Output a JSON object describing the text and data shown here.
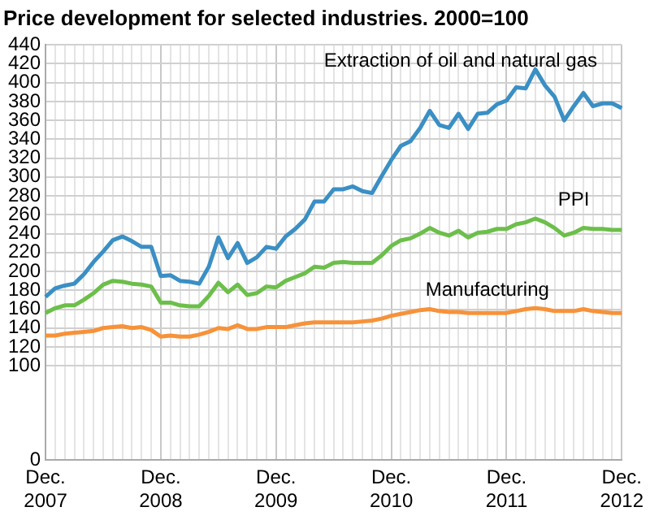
{
  "chart_data": {
    "type": "line",
    "title": "Price development for selected industries. 2000=100",
    "categories": [
      "Dec. 2007",
      null,
      null,
      null,
      null,
      null,
      null,
      null,
      null,
      null,
      null,
      null,
      "Dec. 2008",
      null,
      null,
      null,
      null,
      null,
      null,
      null,
      null,
      null,
      null,
      null,
      "Dec. 2009",
      null,
      null,
      null,
      null,
      null,
      null,
      null,
      null,
      null,
      null,
      null,
      "Dec. 2010",
      null,
      null,
      null,
      null,
      null,
      null,
      null,
      null,
      null,
      null,
      null,
      "Dec. 2011",
      null,
      null,
      null,
      null,
      null,
      null,
      null,
      null,
      null,
      null,
      null,
      "Dec. 2012"
    ],
    "series": [
      {
        "name": "Extraction of oil and natural gas",
        "color": "#3a8fc4",
        "values": [
          173,
          182,
          185,
          187,
          197,
          210,
          221,
          233,
          237,
          232,
          226,
          226,
          195,
          196,
          190,
          189,
          187,
          205,
          236,
          214,
          230,
          209,
          215,
          226,
          224,
          237,
          245,
          255,
          274,
          274,
          287,
          287,
          290,
          285,
          283,
          301,
          318,
          333,
          338,
          352,
          370,
          355,
          352,
          367,
          351,
          367,
          368,
          377,
          381,
          395,
          394,
          414,
          397,
          385,
          360,
          375,
          389,
          375,
          378,
          378,
          373
        ]
      },
      {
        "name": "PPI",
        "color": "#6cbf4a",
        "values": [
          156,
          161,
          164,
          164,
          170,
          177,
          186,
          190,
          189,
          187,
          186,
          184,
          167,
          167,
          164,
          163,
          163,
          174,
          188,
          178,
          186,
          175,
          177,
          184,
          183,
          190,
          194,
          198,
          205,
          204,
          209,
          210,
          209,
          209,
          209,
          217,
          227,
          233,
          235,
          240,
          246,
          241,
          238,
          243,
          236,
          241,
          242,
          245,
          245,
          250,
          252,
          256,
          252,
          246,
          238,
          241,
          246,
          245,
          245,
          244,
          244
        ]
      },
      {
        "name": "Manufacturing",
        "color": "#f7923a",
        "values": [
          132,
          132,
          134,
          135,
          136,
          137,
          140,
          141,
          142,
          140,
          141,
          138,
          131,
          132,
          131,
          131,
          133,
          136,
          140,
          139,
          143,
          139,
          139,
          141,
          141,
          141,
          143,
          145,
          146,
          146,
          146,
          146,
          146,
          147,
          148,
          150,
          153,
          155,
          157,
          159,
          160,
          158,
          157,
          157,
          156,
          156,
          156,
          156,
          156,
          158,
          160,
          161,
          160,
          158,
          158,
          158,
          160,
          158,
          157,
          156,
          156
        ]
      }
    ],
    "ylim": [
      0,
      440
    ],
    "yticks": [
      0,
      100,
      120,
      140,
      160,
      180,
      200,
      220,
      240,
      260,
      280,
      300,
      320,
      340,
      360,
      380,
      400,
      420,
      440
    ],
    "grid": true,
    "legend": false,
    "marker": "none",
    "line_style": "solid"
  }
}
